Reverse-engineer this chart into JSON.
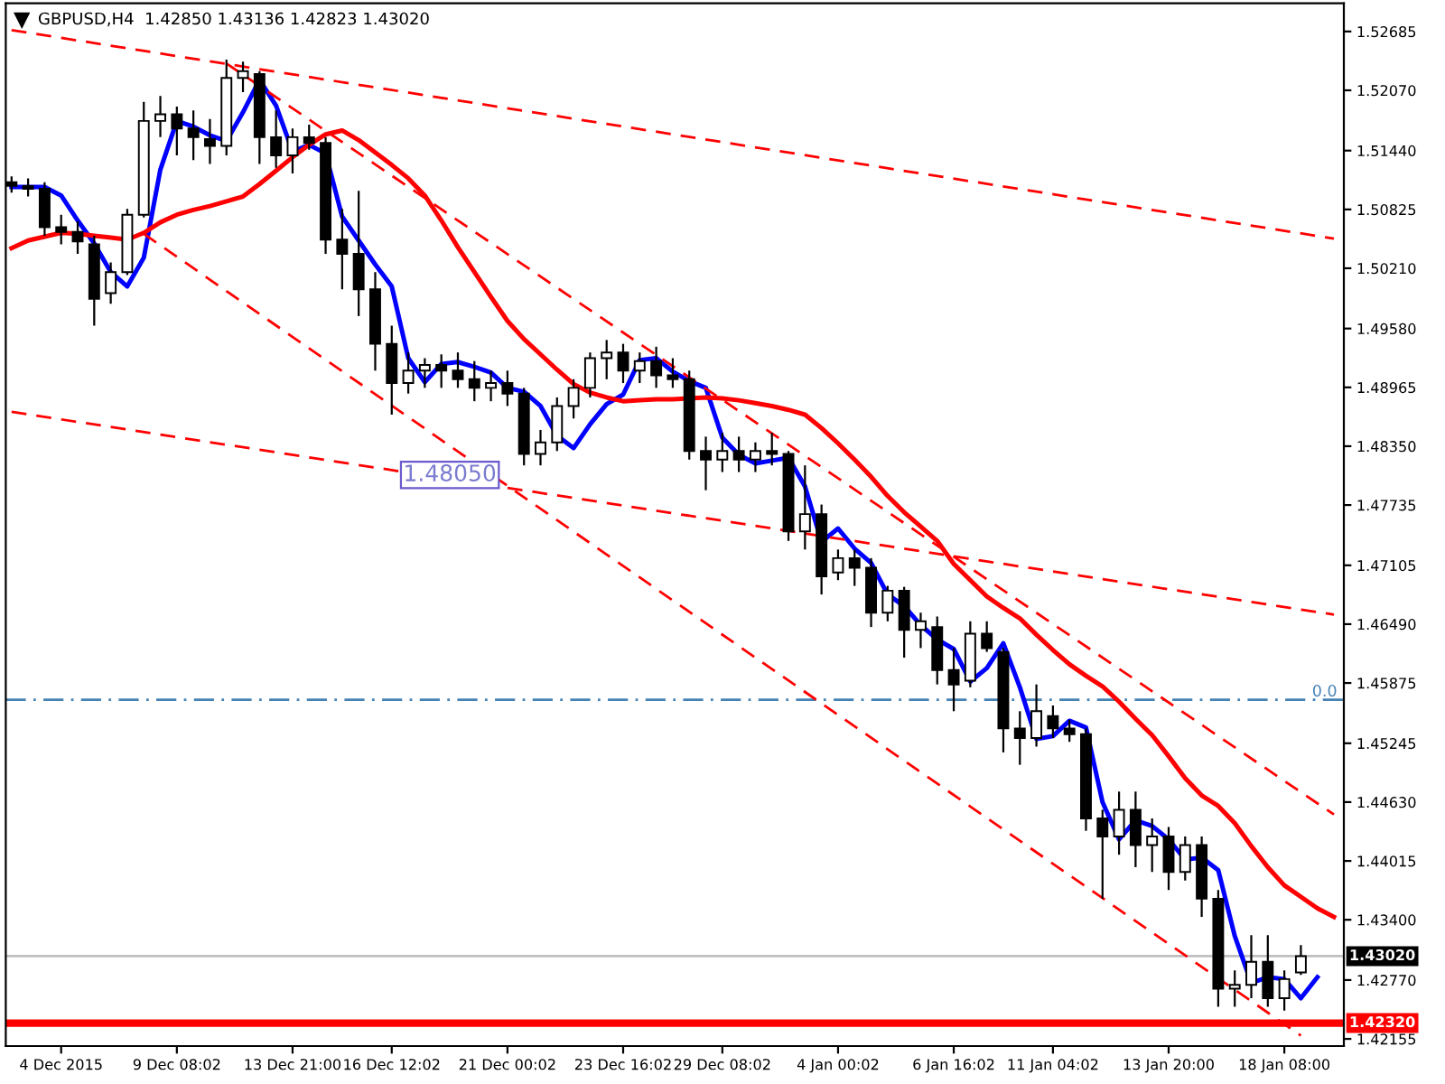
{
  "chart_data": {
    "type": "candlestick",
    "title": "GBPUSD,H4  1.42850 1.43136 1.42823 1.43020",
    "categories": [
      null,
      null,
      null,
      "4 Dec 2015",
      null,
      null,
      null,
      null,
      null,
      null,
      "9 Dec 08:02",
      null,
      null,
      null,
      null,
      null,
      null,
      "13 Dec 21:00",
      null,
      null,
      null,
      null,
      null,
      "16 Dec 12:02",
      null,
      null,
      null,
      null,
      null,
      null,
      "21 Dec 00:02",
      null,
      null,
      null,
      null,
      null,
      null,
      "23 Dec 16:02",
      null,
      null,
      null,
      null,
      null,
      "29 Dec 08:02",
      null,
      null,
      null,
      null,
      null,
      null,
      "4 Jan 00:02",
      null,
      null,
      null,
      null,
      null,
      null,
      "6 Jan 16:02",
      null,
      null,
      null,
      null,
      null,
      "11 Jan 04:02",
      null,
      null,
      null,
      null,
      null,
      null,
      "13 Jan 20:00",
      null,
      null,
      null,
      null,
      null,
      null,
      "18 Jan 08:00",
      null,
      null,
      null
    ],
    "ohlc": [
      [
        1.5111,
        1.5117,
        1.51,
        1.5107
      ],
      [
        1.5107,
        1.5115,
        1.5096,
        1.5104
      ],
      [
        1.5104,
        1.5111,
        1.5055,
        1.5064
      ],
      [
        1.5064,
        1.5077,
        1.5046,
        1.5059
      ],
      [
        1.5059,
        1.507,
        1.5036,
        1.5049
      ],
      [
        1.5046,
        1.5055,
        1.4961,
        1.4989
      ],
      [
        1.4995,
        1.5027,
        1.4984,
        1.5017
      ],
      [
        1.5017,
        1.5083,
        1.5014,
        1.5077
      ],
      [
        1.5077,
        1.5195,
        1.5074,
        1.5175
      ],
      [
        1.5175,
        1.5201,
        1.5158,
        1.5182
      ],
      [
        1.5182,
        1.519,
        1.5139,
        1.5167
      ],
      [
        1.5167,
        1.5186,
        1.5134,
        1.5158
      ],
      [
        1.5156,
        1.5177,
        1.513,
        1.5149
      ],
      [
        1.5149,
        1.5239,
        1.5139,
        1.522
      ],
      [
        1.522,
        1.5237,
        1.5205,
        1.5227
      ],
      [
        1.5224,
        1.5227,
        1.513,
        1.5158
      ],
      [
        1.5158,
        1.5186,
        1.5126,
        1.5139
      ],
      [
        1.5139,
        1.5167,
        1.512,
        1.5158
      ],
      [
        1.5158,
        1.5171,
        1.5145,
        1.5152
      ],
      [
        1.5152,
        1.5158,
        1.5036,
        1.5051
      ],
      [
        1.5051,
        1.5083,
        1.4999,
        1.5036
      ],
      [
        1.5036,
        1.5102,
        1.4971,
        1.4999
      ],
      [
        1.4999,
        1.5017,
        1.4914,
        1.4942
      ],
      [
        1.4942,
        1.4961,
        1.4868,
        1.4901
      ],
      [
        1.4901,
        1.4933,
        1.489,
        1.4914
      ],
      [
        1.4914,
        1.4927,
        1.4896,
        1.492
      ],
      [
        1.492,
        1.4931,
        1.4896,
        1.4914
      ],
      [
        1.4914,
        1.4933,
        1.4896,
        1.4905
      ],
      [
        1.4905,
        1.4924,
        1.4882,
        1.4896
      ],
      [
        1.4896,
        1.4914,
        1.4882,
        1.4901
      ],
      [
        1.4901,
        1.4914,
        1.4877,
        1.489
      ],
      [
        1.489,
        1.4896,
        1.4815,
        1.4827
      ],
      [
        1.4827,
        1.4852,
        1.4815,
        1.4839
      ],
      [
        1.4839,
        1.4886,
        1.483,
        1.4877
      ],
      [
        1.4877,
        1.4905,
        1.4864,
        1.4896
      ],
      [
        1.4896,
        1.4933,
        1.4886,
        1.4927
      ],
      [
        1.4927,
        1.4946,
        1.4905,
        1.4933
      ],
      [
        1.4933,
        1.4942,
        1.4901,
        1.4914
      ],
      [
        1.4914,
        1.4933,
        1.4901,
        1.4924
      ],
      [
        1.4924,
        1.4939,
        1.4896,
        1.4909
      ],
      [
        1.4909,
        1.4927,
        1.4896,
        1.4905
      ],
      [
        1.4905,
        1.4914,
        1.4821,
        1.483
      ],
      [
        1.483,
        1.4845,
        1.4789,
        1.4821
      ],
      [
        1.4821,
        1.4849,
        1.4808,
        1.483
      ],
      [
        1.483,
        1.4845,
        1.4808,
        1.4821
      ],
      [
        1.4821,
        1.4839,
        1.4808,
        1.483
      ],
      [
        1.483,
        1.4849,
        1.4815,
        1.4827
      ],
      [
        1.4827,
        1.483,
        1.4736,
        1.4746
      ],
      [
        1.4746,
        1.4815,
        1.4727,
        1.4764
      ],
      [
        1.4764,
        1.4774,
        1.468,
        1.4699
      ],
      [
        1.4703,
        1.4727,
        1.4695,
        1.4718
      ],
      [
        1.4718,
        1.4727,
        1.4689,
        1.4708
      ],
      [
        1.4708,
        1.4718,
        1.4646,
        1.4661
      ],
      [
        1.4661,
        1.4689,
        1.4652,
        1.4684
      ],
      [
        1.4684,
        1.4688,
        1.4614,
        1.4643
      ],
      [
        1.4643,
        1.4661,
        1.4624,
        1.4652
      ],
      [
        1.4646,
        1.4657,
        1.4586,
        1.4601
      ],
      [
        1.4601,
        1.4624,
        1.4558,
        1.4586
      ],
      [
        1.459,
        1.4652,
        1.4583,
        1.4639
      ],
      [
        1.4639,
        1.4652,
        1.462,
        1.4624
      ],
      [
        1.462,
        1.4624,
        1.4515,
        1.454
      ],
      [
        1.454,
        1.4558,
        1.4502,
        1.453
      ],
      [
        1.453,
        1.4586,
        1.4521,
        1.4558
      ],
      [
        1.4553,
        1.4564,
        1.453,
        1.454
      ],
      [
        1.454,
        1.4549,
        1.4526,
        1.4534
      ],
      [
        1.4534,
        1.454,
        1.4433,
        1.4446
      ],
      [
        1.4446,
        1.4455,
        1.4362,
        1.4427
      ],
      [
        1.4427,
        1.4474,
        1.4408,
        1.4455
      ],
      [
        1.4455,
        1.4474,
        1.4395,
        1.4418
      ],
      [
        1.4418,
        1.4446,
        1.439,
        1.4427
      ],
      [
        1.4427,
        1.4437,
        1.4371,
        1.439
      ],
      [
        1.439,
        1.4427,
        1.4381,
        1.4418
      ],
      [
        1.4418,
        1.4427,
        1.4343,
        1.4362
      ],
      [
        1.4362,
        1.4371,
        1.4249,
        1.4268
      ],
      [
        1.4268,
        1.4287,
        1.4249,
        1.4272
      ],
      [
        1.4272,
        1.4324,
        1.4258,
        1.4296
      ],
      [
        1.4296,
        1.4324,
        1.4249,
        1.4258
      ],
      [
        1.4258,
        1.4287,
        1.4245,
        1.4278
      ],
      [
        1.4285,
        1.43136,
        1.42823,
        1.4302
      ],
      null,
      null
    ],
    "series": [
      {
        "type": "line",
        "color": "#0000ff",
        "values": [
          1.5106,
          1.5106,
          1.5106,
          1.5097,
          1.5071,
          1.5047,
          1.5017,
          1.5002,
          1.5032,
          1.5124,
          1.5175,
          1.5169,
          1.516,
          1.5154,
          1.5184,
          1.5218,
          1.5191,
          1.5143,
          1.515,
          1.5141,
          1.5075,
          1.505,
          1.5025,
          1.5002,
          1.4927,
          1.4902,
          1.4921,
          1.4923,
          1.4918,
          1.4912,
          1.4896,
          1.4892,
          1.4877,
          1.4846,
          1.4833,
          1.4858,
          1.4879,
          1.4889,
          1.4925,
          1.4927,
          1.4913,
          1.4903,
          1.4896,
          1.4844,
          1.4826,
          1.4817,
          1.482,
          1.4823,
          1.4793,
          1.4735,
          1.4749,
          1.4728,
          1.4713,
          1.468,
          1.4668,
          1.4648,
          1.4633,
          1.4623,
          1.4589,
          1.4603,
          1.4629,
          1.4583,
          1.4529,
          1.4532,
          1.4548,
          1.4541,
          1.4463,
          1.4424,
          1.4444,
          1.4438,
          1.4424,
          1.4403,
          1.4405,
          1.4392,
          1.4323,
          1.4274,
          1.428,
          1.4278,
          1.4258,
          1.428,
          null
        ]
      },
      {
        "type": "line",
        "color": "#ff0000",
        "values": [
          1.5042,
          1.505,
          1.5054,
          1.5058,
          1.5057,
          1.5055,
          1.5053,
          1.5051,
          1.5058,
          1.5069,
          1.5077,
          1.5082,
          1.5086,
          1.5091,
          1.5096,
          1.5109,
          1.5123,
          1.5137,
          1.515,
          1.5161,
          1.5165,
          1.5155,
          1.5142,
          1.5129,
          1.5115,
          1.5097,
          1.5071,
          1.5043,
          1.5017,
          1.4991,
          1.4966,
          1.4947,
          1.4931,
          1.4915,
          1.49,
          1.4891,
          1.4886,
          1.4882,
          1.4883,
          1.4884,
          1.4884,
          1.4885,
          1.4886,
          1.4885,
          1.4883,
          1.488,
          1.4877,
          1.4873,
          1.4868,
          1.4854,
          1.4838,
          1.4821,
          1.4803,
          1.4783,
          1.4766,
          1.4751,
          1.4736,
          1.4712,
          1.4695,
          1.4678,
          1.4666,
          1.4655,
          1.4638,
          1.4622,
          1.4607,
          1.4595,
          1.4584,
          1.4568,
          1.455,
          1.4533,
          1.4511,
          1.4488,
          1.447,
          1.4459,
          1.4441,
          1.4417,
          1.4395,
          1.4376,
          1.4364,
          1.4352,
          1.4343
        ]
      },
      {
        "type": "line",
        "color": "#ff0000",
        "line_style": "dashed",
        "values": [
          1.527,
          null,
          null,
          null,
          null,
          null,
          null,
          null,
          null,
          null,
          null,
          null,
          null,
          null,
          null,
          null,
          null,
          null,
          null,
          null,
          null,
          null,
          null,
          null,
          null,
          null,
          null,
          null,
          null,
          null,
          null,
          null,
          null,
          null,
          null,
          null,
          null,
          null,
          null,
          null,
          null,
          null,
          null,
          null,
          null,
          null,
          null,
          null,
          null,
          null,
          null,
          null,
          null,
          null,
          null,
          null,
          null,
          null,
          null,
          null,
          null,
          null,
          null,
          null,
          null,
          null,
          null,
          null,
          null,
          null,
          null,
          null,
          null,
          null,
          null,
          null,
          null,
          null,
          null,
          null,
          1.5052
        ]
      },
      {
        "type": "line",
        "color": "#ff0000",
        "line_style": "dashed",
        "values": [
          1.4871,
          null,
          null,
          null,
          null,
          null,
          null,
          null,
          null,
          null,
          null,
          null,
          null,
          null,
          null,
          null,
          null,
          null,
          null,
          null,
          null,
          null,
          null,
          null,
          null,
          null,
          null,
          null,
          null,
          null,
          null,
          null,
          null,
          null,
          null,
          null,
          null,
          null,
          null,
          null,
          null,
          null,
          null,
          null,
          null,
          null,
          null,
          null,
          null,
          null,
          null,
          null,
          null,
          null,
          null,
          null,
          null,
          null,
          null,
          null,
          null,
          null,
          null,
          null,
          null,
          null,
          null,
          null,
          null,
          null,
          null,
          null,
          null,
          null,
          null,
          null,
          null,
          null,
          null,
          null,
          1.4659
        ]
      },
      {
        "type": "line",
        "color": "#ff0000",
        "line_style": "dashed",
        "values": [
          null,
          null,
          null,
          null,
          null,
          null,
          null,
          null,
          null,
          null,
          null,
          null,
          null,
          1.5235,
          null,
          null,
          null,
          null,
          null,
          null,
          null,
          null,
          null,
          null,
          null,
          null,
          null,
          null,
          null,
          null,
          null,
          null,
          null,
          null,
          null,
          null,
          null,
          null,
          null,
          null,
          null,
          null,
          null,
          null,
          null,
          null,
          null,
          null,
          null,
          null,
          null,
          null,
          null,
          null,
          null,
          null,
          null,
          null,
          null,
          null,
          null,
          null,
          null,
          null,
          null,
          null,
          null,
          null,
          null,
          null,
          null,
          null,
          null,
          null,
          null,
          null,
          null,
          null,
          null,
          null,
          1.445
        ]
      },
      {
        "type": "line",
        "color": "#ff0000",
        "line_style": "dashed",
        "values": [
          null,
          null,
          null,
          null,
          null,
          null,
          null,
          null,
          1.5057,
          null,
          null,
          null,
          null,
          null,
          null,
          null,
          null,
          null,
          null,
          null,
          null,
          null,
          null,
          null,
          null,
          null,
          null,
          null,
          null,
          null,
          null,
          null,
          null,
          null,
          null,
          null,
          null,
          null,
          null,
          null,
          null,
          null,
          null,
          null,
          null,
          null,
          null,
          null,
          null,
          null,
          null,
          null,
          null,
          null,
          null,
          null,
          null,
          null,
          null,
          null,
          null,
          null,
          null,
          null,
          null,
          null,
          null,
          null,
          null,
          null,
          null,
          null,
          null,
          null,
          null,
          null,
          null,
          null,
          1.4219,
          null,
          null
        ]
      }
    ],
    "ref_lines": [
      {
        "axis": "y",
        "value": 1.457,
        "color": "#4682b4",
        "line_style": "dashdot"
      },
      {
        "axis": "y",
        "value": 1.4302,
        "label": "1.43020",
        "color": "#c0c0c0",
        "line_style": "solid"
      },
      {
        "axis": "y",
        "value": 1.4232,
        "label": "1.42320",
        "color": "#ff0000",
        "line_style": "solid"
      }
    ],
    "annotations": [
      {
        "text": "1.48050",
        "y": 1.4805
      },
      {
        "text": "0.0",
        "y": 1.457
      }
    ],
    "ylim": [
      1.4208,
      1.5298
    ],
    "yticks": [
      1.52685,
      {
        "value": 1.5207,
        "label": "1.52070"
      },
      {
        "value": 1.5144,
        "label": "1.51440"
      },
      1.50825,
      {
        "value": 1.5021,
        "label": "1.50210"
      },
      {
        "value": 1.4958,
        "label": "1.49580"
      },
      1.48965,
      {
        "value": 1.4835,
        "label": "1.48350"
      },
      1.47735,
      1.47105,
      {
        "value": 1.4649,
        "label": "1.46490"
      },
      1.45875,
      1.45245,
      {
        "value": 1.4463,
        "label": "1.44630"
      },
      1.44015,
      {
        "value": 1.434,
        "label": "1.43400"
      },
      {
        "value": 1.4277,
        "label": "1.42770"
      },
      1.42155
    ],
    "grid": false,
    "legend": false
  }
}
